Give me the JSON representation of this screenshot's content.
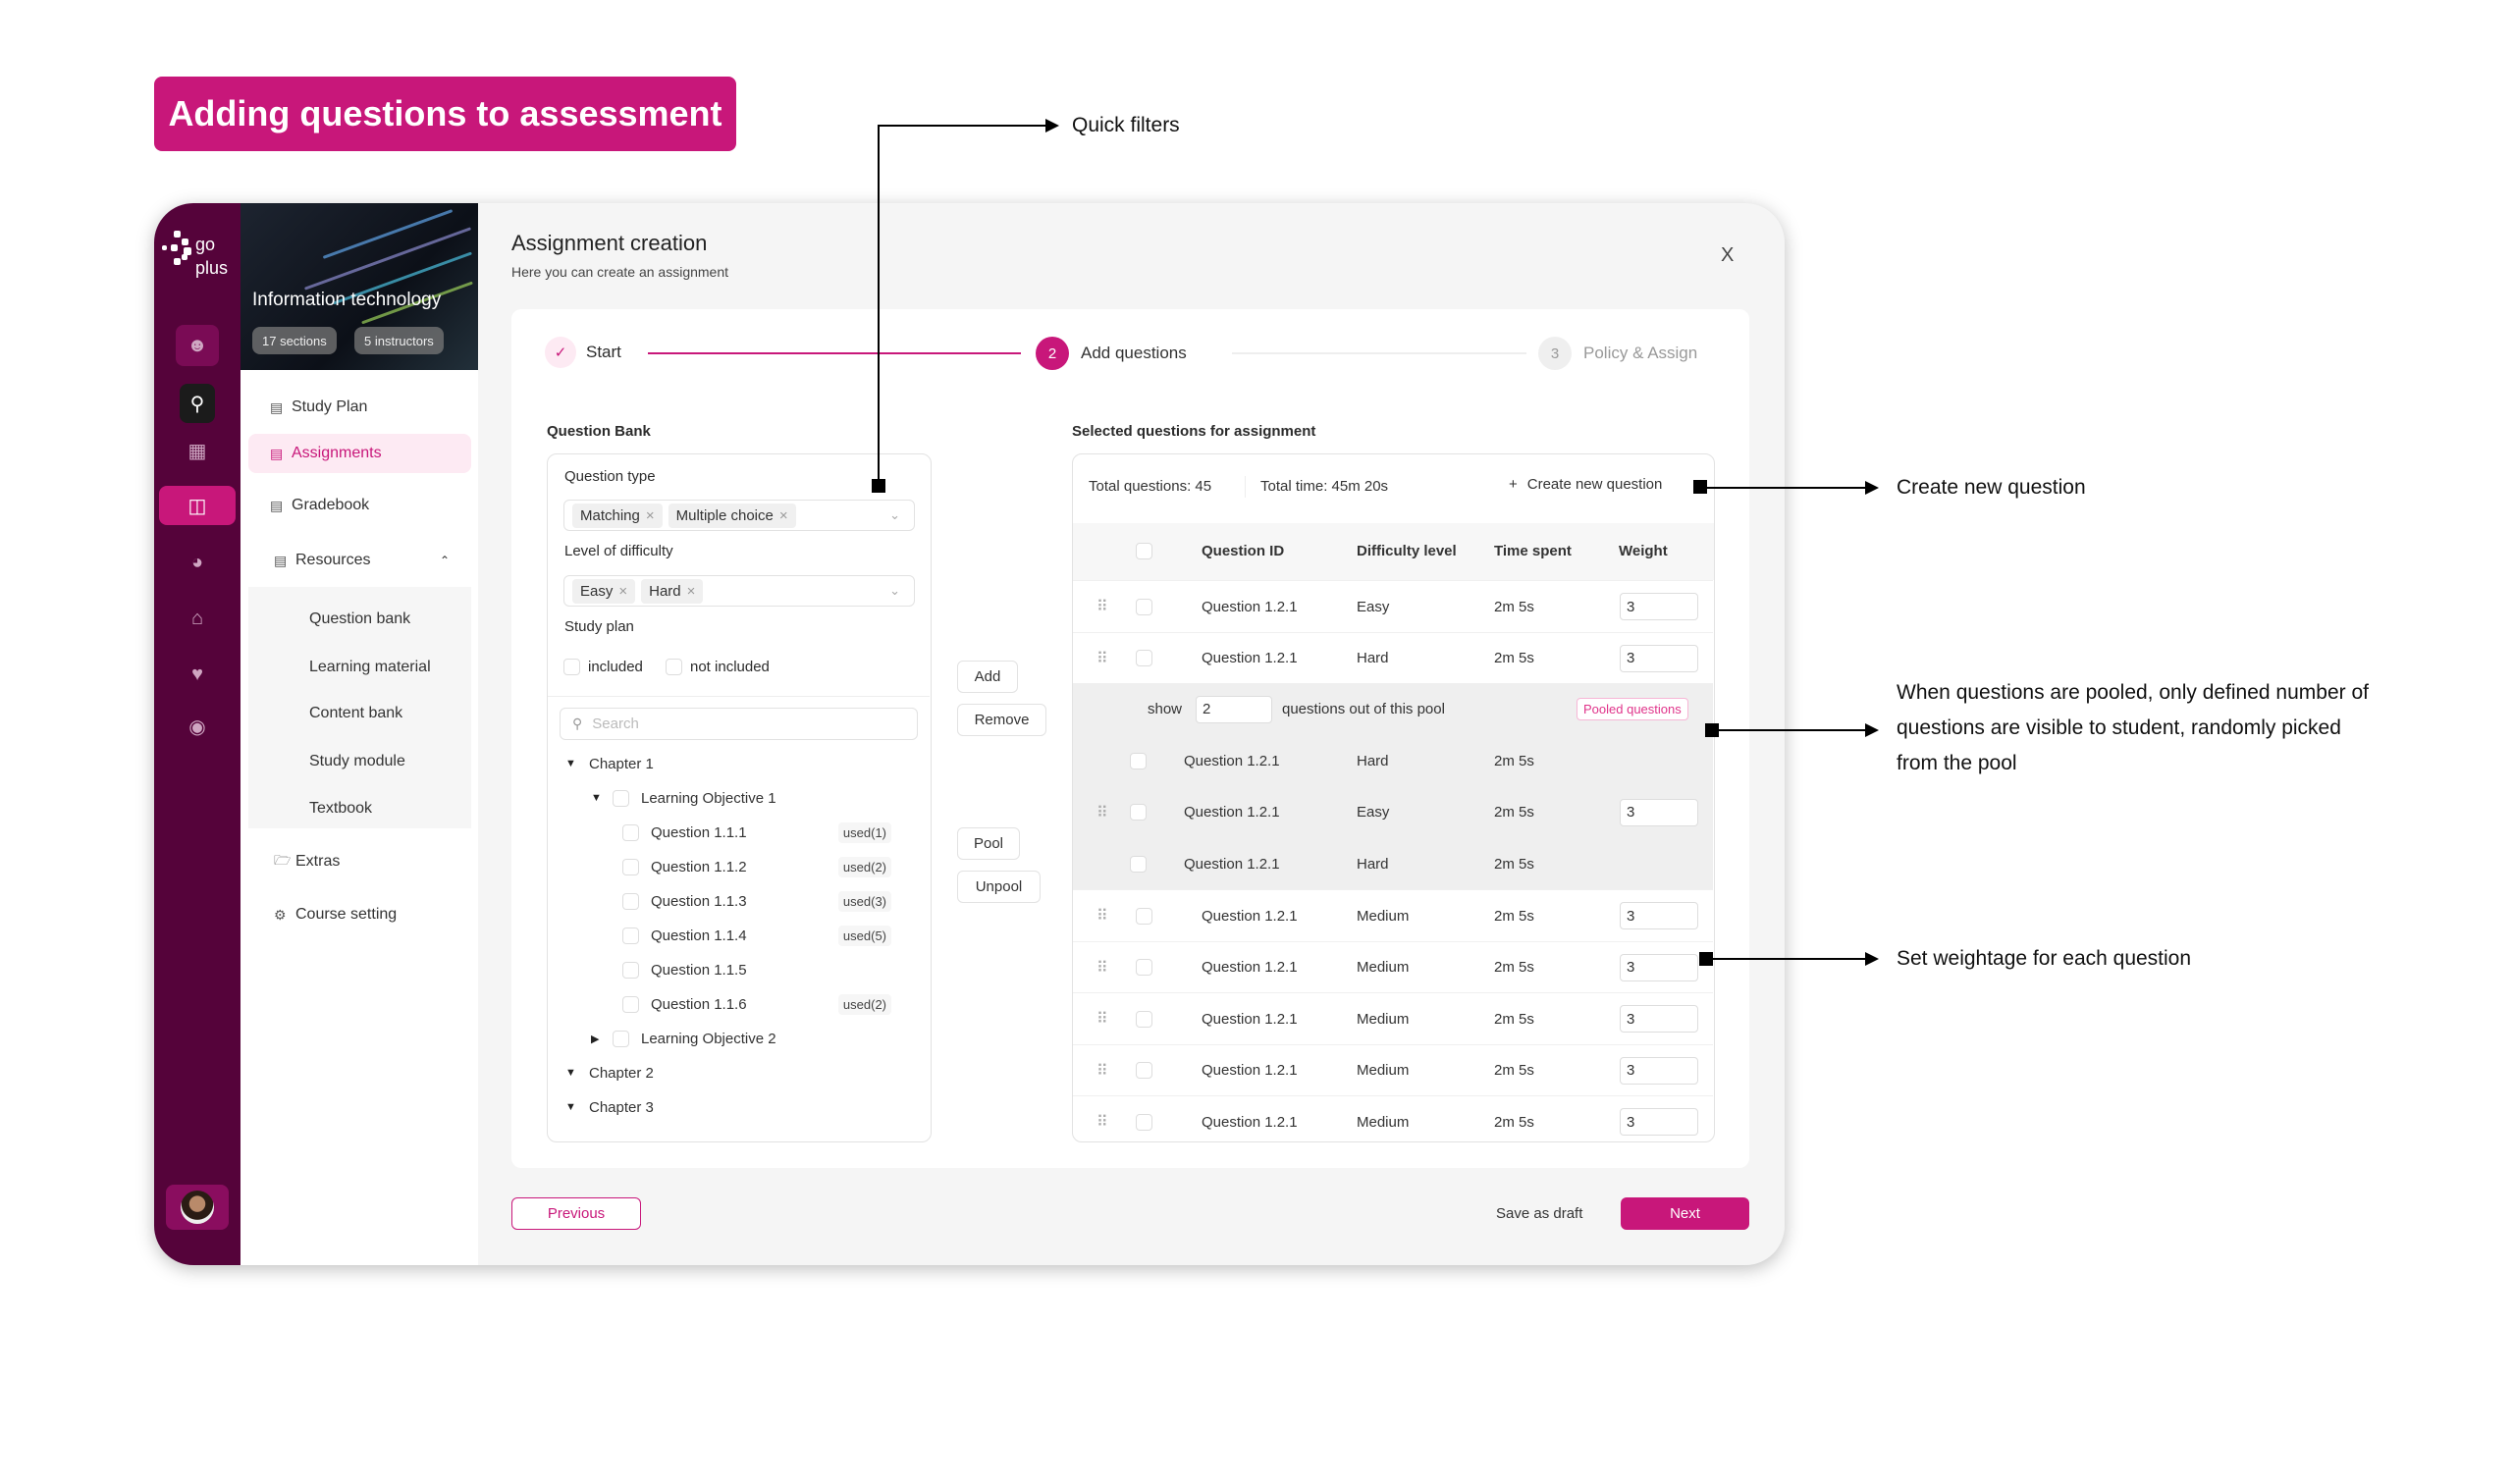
{
  "title": "Adding questions to assessment",
  "colors": {
    "brand": "#c8177a",
    "rail": "#55033a"
  },
  "rail": {
    "logo_text": "go plus",
    "icons": [
      "user-icon",
      "search-icon",
      "grid-icon",
      "book-icon",
      "pie-chart-icon",
      "bank-icon",
      "heart-icon",
      "chat-icon"
    ]
  },
  "course": {
    "name": "Information technology",
    "sections": "17 sections",
    "instructors": "5 instructors"
  },
  "nav": {
    "study_plan": "Study Plan",
    "assignments": "Assignments",
    "gradebook": "Gradebook",
    "resources": "Resources",
    "resources_sub": [
      "Question bank",
      "Learning material",
      "Content bank",
      "Study module",
      "Textbook"
    ],
    "extras": "Extras",
    "course_setting": "Course setting"
  },
  "header": {
    "title": "Assignment creation",
    "subtitle": "Here you can create an assignment",
    "close": "X"
  },
  "stepper": [
    {
      "num": "✓",
      "label": "Start",
      "state": "done"
    },
    {
      "num": "2",
      "label": "Add questions",
      "state": "active"
    },
    {
      "num": "3",
      "label": "Policy & Assign",
      "state": "pending"
    }
  ],
  "bank": {
    "title": "Question Bank",
    "question_type_label": "Question type",
    "question_types": [
      "Matching",
      "Multiple choice"
    ],
    "difficulty_label": "Level of difficulty",
    "difficulties": [
      "Easy",
      "Hard"
    ],
    "study_plan_label": "Study plan",
    "included": "included",
    "not_included": "not included",
    "search_placeholder": "Search",
    "tree": [
      {
        "level": 0,
        "label": "Chapter 1",
        "caret": "down"
      },
      {
        "level": 1,
        "label": "Learning Objective 1",
        "caret": "down",
        "checkbox": true
      },
      {
        "level": 2,
        "label": "Question 1.1.1",
        "checkbox": true,
        "used": "used(1)"
      },
      {
        "level": 2,
        "label": "Question 1.1.2",
        "checkbox": true,
        "used": "used(2)"
      },
      {
        "level": 2,
        "label": "Question 1.1.3",
        "checkbox": true,
        "used": "used(3)"
      },
      {
        "level": 2,
        "label": "Question 1.1.4",
        "checkbox": true,
        "used": "used(5)"
      },
      {
        "level": 2,
        "label": "Question 1.1.5",
        "checkbox": true
      },
      {
        "level": 2,
        "label": "Question 1.1.6",
        "checkbox": true,
        "used": "used(2)"
      },
      {
        "level": 1,
        "label": "Learning Objective 2",
        "caret": "right",
        "checkbox": true
      },
      {
        "level": 0,
        "label": "Chapter 2",
        "caret": "down"
      },
      {
        "level": 0,
        "label": "Chapter 3",
        "caret": "down"
      }
    ]
  },
  "actions": {
    "add": "Add",
    "remove": "Remove",
    "pool": "Pool",
    "unpool": "Unpool"
  },
  "selected": {
    "title": "Selected questions for assignment",
    "total_questions": "Total questions: 45",
    "total_time": "Total time: 45m 20s",
    "create_new": "Create new question",
    "columns": [
      "Question ID",
      "Difficulty level",
      "Time spent",
      "Weight"
    ],
    "pool_show": "show",
    "pool_count": "2",
    "pool_text": "questions out of this pool",
    "pool_badge": "Pooled questions",
    "rows": [
      {
        "id": "Question 1.2.1",
        "difficulty": "Easy",
        "time": "2m 5s",
        "weight": "3"
      },
      {
        "id": "Question 1.2.1",
        "difficulty": "Hard",
        "time": "2m 5s",
        "weight": "3"
      },
      {
        "pool_header": true
      },
      {
        "id": "Question 1.2.1",
        "difficulty": "Hard",
        "time": "2m 5s",
        "pooled": true
      },
      {
        "id": "Question 1.2.1",
        "difficulty": "Easy",
        "time": "2m 5s",
        "weight": "3",
        "pooled": true
      },
      {
        "id": "Question 1.2.1",
        "difficulty": "Hard",
        "time": "2m 5s",
        "pooled": true
      },
      {
        "id": "Question 1.2.1",
        "difficulty": "Medium",
        "time": "2m 5s",
        "weight": "3"
      },
      {
        "id": "Question 1.2.1",
        "difficulty": "Medium",
        "time": "2m 5s",
        "weight": "3"
      },
      {
        "id": "Question 1.2.1",
        "difficulty": "Medium",
        "time": "2m 5s",
        "weight": "3"
      },
      {
        "id": "Question 1.2.1",
        "difficulty": "Medium",
        "time": "2m 5s",
        "weight": "3"
      },
      {
        "id": "Question 1.2.1",
        "difficulty": "Medium",
        "time": "2m 5s",
        "weight": "3"
      }
    ]
  },
  "footer": {
    "previous": "Previous",
    "save_draft": "Save as draft",
    "next": "Next"
  },
  "annotations": {
    "quick_filters": "Quick filters",
    "create_new": "Create new question",
    "pooled": "When questions are pooled, only defined number of questions are visible to student, randomly picked from the pool",
    "weightage": "Set weightage for each question"
  }
}
